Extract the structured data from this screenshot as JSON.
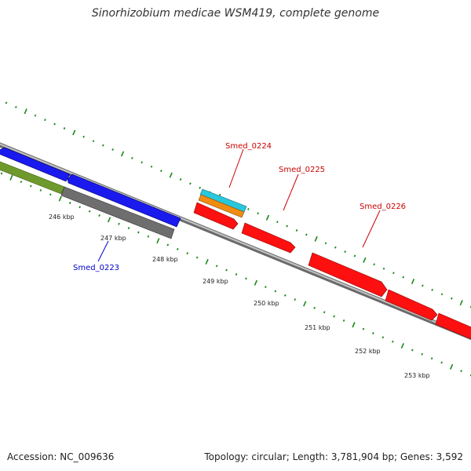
{
  "title": "Sinorhizobium medicae WSM419, complete genome",
  "accession_text": "Accession: NC_009636",
  "summary_text": "Topology: circular; Length: 3,781,904 bp; Genes: 3,592",
  "position_scale": {
    "unit": "kbp",
    "ticks": [
      "246 kbp",
      "247 kbp",
      "248 kbp",
      "249 kbp",
      "250 kbp",
      "251 kbp",
      "252 kbp",
      "253 kbp"
    ]
  },
  "gene_labels": [
    {
      "name": "Smed_0223",
      "color": "#0000cc"
    },
    {
      "name": "Smed_0224",
      "color": "#cc0000"
    },
    {
      "name": "Smed_0225",
      "color": "#cc0000"
    },
    {
      "name": "Smed_0226",
      "color": "#cc0000"
    }
  ],
  "colors": {
    "forward_genes": "#ff0000",
    "reverse_genes": "#0000ee",
    "backbone": "#9a9a9a",
    "ticks": "#1a8a1a",
    "other_features": [
      "#25c8d8",
      "#f08c10",
      "#6a9a28",
      "#6a6a6a"
    ]
  }
}
